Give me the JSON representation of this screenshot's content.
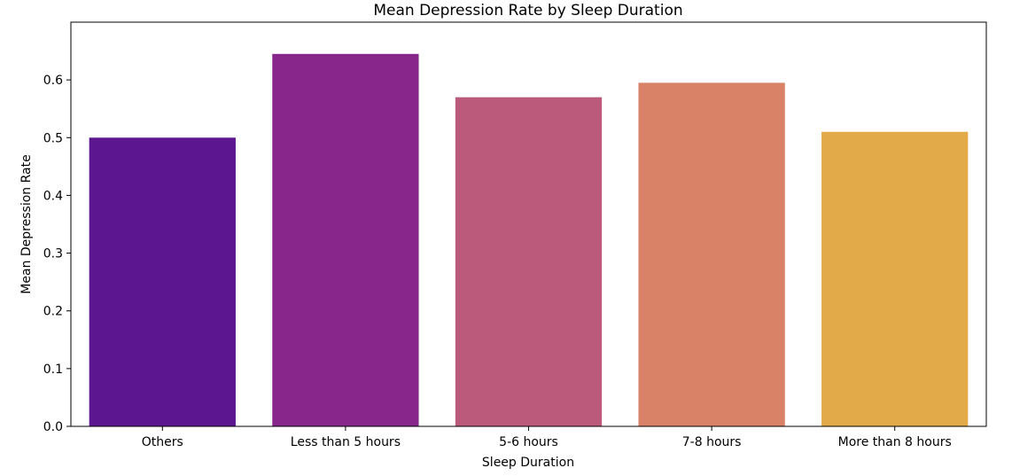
{
  "chart_data": {
    "type": "bar",
    "title": "Mean Depression Rate by Sleep Duration",
    "xlabel": "Sleep Duration",
    "ylabel": "Mean Depression Rate",
    "categories": [
      "Others",
      "Less than 5 hours",
      "5-6 hours",
      "7-8 hours",
      "More than 8 hours"
    ],
    "values": [
      0.5,
      0.645,
      0.57,
      0.595,
      0.51
    ],
    "colors": [
      "#5c1790",
      "#88268c",
      "#bc5a7c",
      "#d98267",
      "#e3aa4a"
    ],
    "ylim": [
      0,
      0.7
    ],
    "yticks": [
      0.0,
      0.1,
      0.2,
      0.3,
      0.4,
      0.5,
      0.6
    ],
    "ytick_labels": [
      "0.0",
      "0.1",
      "0.2",
      "0.3",
      "0.4",
      "0.5",
      "0.6"
    ],
    "grid": false,
    "legend": "none"
  }
}
